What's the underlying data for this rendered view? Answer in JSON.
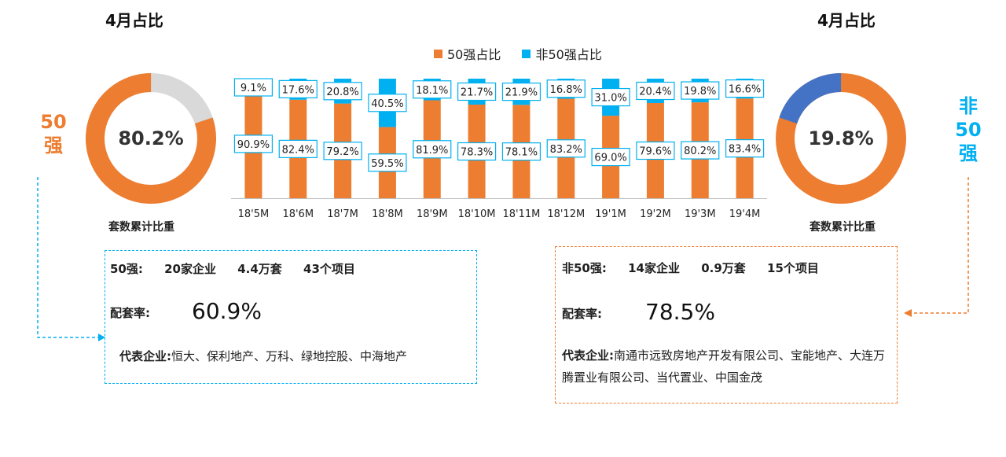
{
  "left_panel": {
    "title": "4月占比",
    "caption": "套数累计比重",
    "center_value": "80.2%",
    "side_label_1": "50",
    "side_label_2": "强",
    "color": "#ED7D31",
    "rest_color": "#D9D9D9",
    "share_value": 80.2,
    "info": {
      "head_name": "50强:",
      "head_companies": "20家企业",
      "head_units": "4.4万套",
      "head_projects": "43个项目",
      "rate_label": "配套率:",
      "rate_value": "60.9%",
      "rep_label": "代表企业:",
      "rep_text": "恒大、保利地产、万科、绿地控股、中海地产"
    }
  },
  "right_panel": {
    "title": "4月占比",
    "caption": "套数累计比重",
    "center_value": "19.8%",
    "side_label_1": "非",
    "side_label_2": "50",
    "side_label_3": "强",
    "color": "#4472C4",
    "rest_color": "#ED7D31",
    "share_value": 19.8,
    "info": {
      "head_name": "非50强:",
      "head_companies": "14家企业",
      "head_units": "0.9万套",
      "head_projects": "15个项目",
      "rate_label": "配套率:",
      "rate_value": "78.5%",
      "rep_label": "代表企业:",
      "rep_text": "南通市远致房地产开发有限公司、宝能地产、大连万腾置业有限公司、当代置业、中国金茂"
    }
  },
  "colors": {
    "orange": "#ED7D31",
    "blue": "#00B0F0",
    "label_border": "#00B0F0",
    "dash_blue": "#00B0F0",
    "dash_orange": "#ED7D31"
  },
  "chart_data": {
    "type": "bar",
    "stacked": true,
    "categories": [
      "18'5M",
      "18'6M",
      "18'7M",
      "18'8M",
      "18'9M",
      "18'10M",
      "18'11M",
      "18'12M",
      "19'1M",
      "19'2M",
      "19'3M",
      "19'4M"
    ],
    "series": [
      {
        "name": "50强占比",
        "values": [
          90.9,
          82.4,
          79.2,
          59.5,
          81.9,
          78.3,
          78.1,
          83.2,
          69.0,
          79.6,
          80.2,
          83.4
        ],
        "labels": [
          "90.9%",
          "82.4%",
          "79.2%",
          "59.5%",
          "81.9%",
          "78.3%",
          "78.1%",
          "83.2%",
          "69.0%",
          "79.6%",
          "80.2%",
          "83.4%"
        ],
        "color": "#ED7D31"
      },
      {
        "name": "非50强占比",
        "values": [
          9.1,
          17.6,
          20.8,
          40.5,
          18.1,
          21.7,
          21.9,
          16.8,
          31.0,
          20.4,
          19.8,
          16.6
        ],
        "labels": [
          "9.1%",
          "17.6%",
          "20.8%",
          "40.5%",
          "18.1%",
          "21.7%",
          "21.9%",
          "16.8%",
          "31.0%",
          "20.4%",
          "19.8%",
          "16.6%"
        ],
        "color": "#00B0F0"
      }
    ],
    "ylim": [
      0,
      100
    ],
    "legend": "top"
  }
}
